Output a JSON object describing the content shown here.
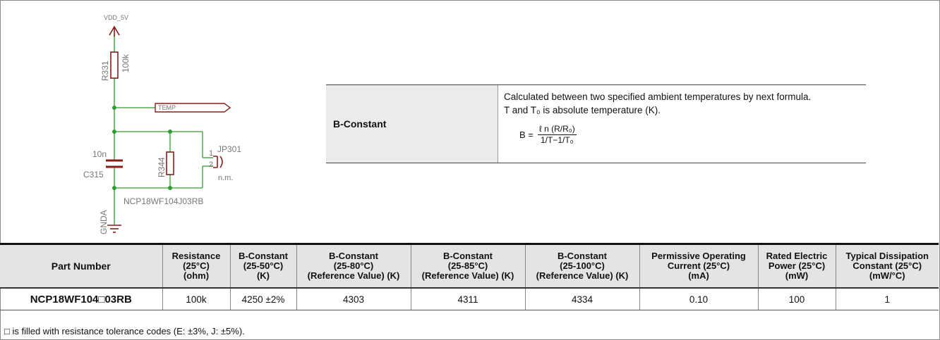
{
  "schematic": {
    "supply_label": "VDD_5V",
    "r331_ref": "R331",
    "r331_value": "100k",
    "temp_label": "TEMP",
    "c315_value": "10n",
    "c315_ref": "C315",
    "r344_ref": "R344",
    "jp_ref": "JP301",
    "jp_pin1": "1",
    "jp_pin2": "2",
    "jp_note": "n.m.",
    "thermistor_part": "NCP18WF104J03RB",
    "ground_label": "GNDA"
  },
  "b_constant": {
    "label": "B-Constant",
    "line1": "Calculated between two specified ambient temperatures by next formula.",
    "line2": "T and T₀ is absolute temperature (K).",
    "formula_lhs": "B =",
    "formula_num": "ℓ n (R/R₀)",
    "formula_den": "1/T−1/T₀"
  },
  "table": {
    "headers": [
      [
        "Part Number"
      ],
      [
        "Resistance",
        "(25°C)",
        "(ohm)"
      ],
      [
        "B-Constant",
        "(25-50°C)",
        "(K)"
      ],
      [
        "B-Constant",
        "(25-80°C)",
        "(Reference Value) (K)"
      ],
      [
        "B-Constant",
        "(25-85°C)",
        "(Reference Value) (K)"
      ],
      [
        "B-Constant",
        "(25-100°C)",
        "(Reference Value) (K)"
      ],
      [
        "Permissive Operating",
        "Current (25°C)",
        "(mA)"
      ],
      [
        "Rated Electric",
        "Power (25°C)",
        "(mW)"
      ],
      [
        "Typical Dissipation",
        "Constant (25°C)",
        "(mW/°C)"
      ]
    ],
    "row": [
      "NCP18WF104□03RB",
      "100k",
      "4250 ±2%",
      "4303",
      "4311",
      "4334",
      "0.10",
      "100",
      "1"
    ]
  },
  "note": "□ is filled with resistance tolerance codes (E: ±3%, J: ±5%)."
}
